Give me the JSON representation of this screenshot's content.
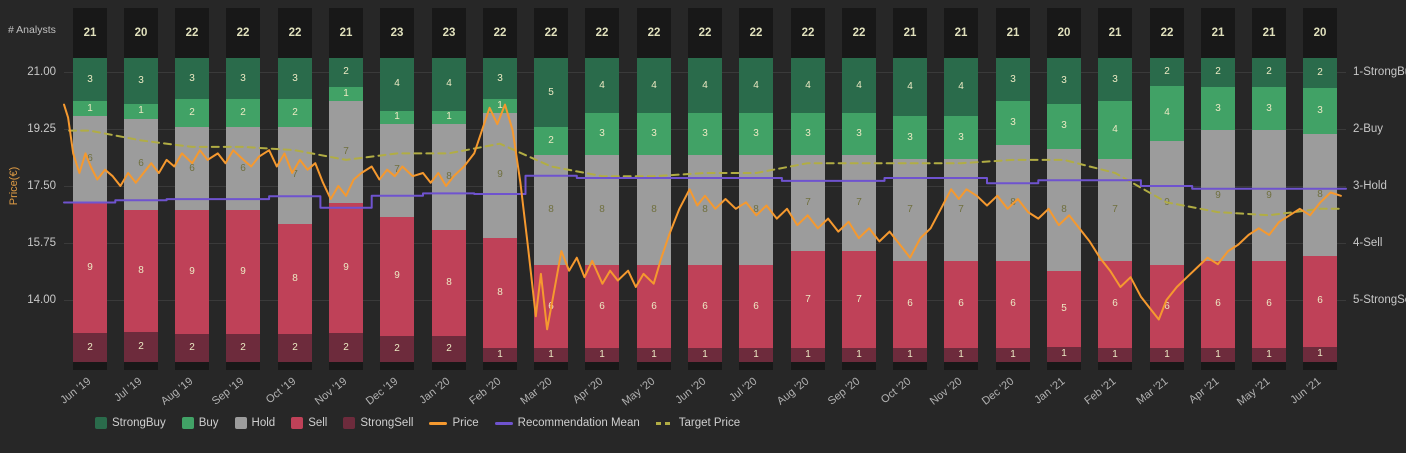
{
  "chart_data": {
    "type": "mixed-stacked-bar-and-line",
    "analysts_label": "# Analysts",
    "left_axis": {
      "label": "Price(€)",
      "ticks": [
        {
          "label": "21.00",
          "value": 21.0
        },
        {
          "label": "19.25",
          "value": 19.25
        },
        {
          "label": "17.50",
          "value": 17.5
        },
        {
          "label": "15.75",
          "value": 15.75
        },
        {
          "label": "14.00",
          "value": 14.0
        }
      ]
    },
    "right_axis": {
      "labels": [
        {
          "label": "1-StrongBuy",
          "value": 1
        },
        {
          "label": "2-Buy",
          "value": 2
        },
        {
          "label": "3-Hold",
          "value": 3
        },
        {
          "label": "4-Sell",
          "value": 4
        },
        {
          "label": "5-StrongSell",
          "value": 5
        }
      ]
    },
    "months": [
      "Jun '19",
      "Jul '19",
      "Aug '19",
      "Sep '19",
      "Oct '19",
      "Nov '19",
      "Dec '19",
      "Jan '20",
      "Feb '20",
      "Mar '20",
      "Apr '20",
      "May '20",
      "Jun '20",
      "Jul '20",
      "Aug '20",
      "Sep '20",
      "Oct '20",
      "Nov '20",
      "Dec '20",
      "Jan '21",
      "Feb '21",
      "Mar '21",
      "Apr '21",
      "May '21",
      "Jun '21"
    ],
    "analyst_counts": [
      21,
      20,
      22,
      22,
      22,
      21,
      23,
      23,
      22,
      22,
      22,
      22,
      22,
      22,
      22,
      22,
      21,
      21,
      21,
      20,
      21,
      22,
      21,
      21,
      20
    ],
    "series": [
      {
        "name": "StrongBuy",
        "color": "#2a6b4b",
        "values": [
          3,
          3,
          3,
          3,
          3,
          2,
          4,
          4,
          3,
          5,
          4,
          4,
          4,
          4,
          4,
          4,
          4,
          4,
          3,
          3,
          3,
          2,
          2,
          2,
          2
        ]
      },
      {
        "name": "Buy",
        "color": "#41a266",
        "values": [
          1,
          1,
          2,
          2,
          2,
          1,
          1,
          1,
          1,
          2,
          3,
          3,
          3,
          3,
          3,
          3,
          3,
          3,
          3,
          3,
          4,
          4,
          3,
          3,
          3
        ]
      },
      {
        "name": "Hold",
        "color": "#9c9c9c",
        "values": [
          6,
          6,
          6,
          6,
          7,
          7,
          7,
          8,
          9,
          8,
          8,
          8,
          8,
          8,
          7,
          7,
          7,
          7,
          8,
          8,
          7,
          9,
          9,
          9,
          8
        ]
      },
      {
        "name": "Sell",
        "color": "#bf4158",
        "values": [
          9,
          8,
          9,
          9,
          8,
          9,
          9,
          8,
          8,
          6,
          6,
          6,
          6,
          6,
          7,
          7,
          6,
          6,
          6,
          5,
          6,
          6,
          6,
          6,
          6
        ]
      },
      {
        "name": "StrongSell",
        "color": "#6d2b3c",
        "values": [
          2,
          2,
          2,
          2,
          2,
          2,
          2,
          2,
          1,
          1,
          1,
          1,
          1,
          1,
          1,
          1,
          1,
          1,
          1,
          1,
          1,
          1,
          1,
          1,
          1
        ]
      }
    ],
    "lines": {
      "price": {
        "name": "Price",
        "color": "#f5992f",
        "points": [
          [
            0,
            20.0
          ],
          [
            0.08,
            19.6
          ],
          [
            0.18,
            18.5
          ],
          [
            0.3,
            17.9
          ],
          [
            0.42,
            18.5
          ],
          [
            0.52,
            18.1
          ],
          [
            0.65,
            17.7
          ],
          [
            0.8,
            18.0
          ],
          [
            0.95,
            17.8
          ],
          [
            1.1,
            17.5
          ],
          [
            1.25,
            17.9
          ],
          [
            1.4,
            17.6
          ],
          [
            1.55,
            17.9
          ],
          [
            1.7,
            18.2
          ],
          [
            1.85,
            17.9
          ],
          [
            2.0,
            18.3
          ],
          [
            2.15,
            18.1
          ],
          [
            2.3,
            18.5
          ],
          [
            2.5,
            18.2
          ],
          [
            2.65,
            18.6
          ],
          [
            2.8,
            18.3
          ],
          [
            3.0,
            18.5
          ],
          [
            3.15,
            18.2
          ],
          [
            3.3,
            18.6
          ],
          [
            3.5,
            18.3
          ],
          [
            3.65,
            18.1
          ],
          [
            3.8,
            18.4
          ],
          [
            4.0,
            18.6
          ],
          [
            4.15,
            18.1
          ],
          [
            4.3,
            18.5
          ],
          [
            4.45,
            17.9
          ],
          [
            4.6,
            18.3
          ],
          [
            4.75,
            18.0
          ],
          [
            4.9,
            18.2
          ],
          [
            5.05,
            17.6
          ],
          [
            5.2,
            17.1
          ],
          [
            5.35,
            17.5
          ],
          [
            5.5,
            17.2
          ],
          [
            5.65,
            17.7
          ],
          [
            5.8,
            17.9
          ],
          [
            6.0,
            18.1
          ],
          [
            6.15,
            17.7
          ],
          [
            6.3,
            18.0
          ],
          [
            6.45,
            17.8
          ],
          [
            6.6,
            18.1
          ],
          [
            6.8,
            17.8
          ],
          [
            7.0,
            17.9
          ],
          [
            7.15,
            17.6
          ],
          [
            7.3,
            17.9
          ],
          [
            7.45,
            17.5
          ],
          [
            7.6,
            17.8
          ],
          [
            7.8,
            18.1
          ],
          [
            8.0,
            18.5
          ],
          [
            8.15,
            19.2
          ],
          [
            8.3,
            19.9
          ],
          [
            8.45,
            19.4
          ],
          [
            8.6,
            20.0
          ],
          [
            8.75,
            19.2
          ],
          [
            8.9,
            17.6
          ],
          [
            9.05,
            15.6
          ],
          [
            9.2,
            13.5
          ],
          [
            9.3,
            14.8
          ],
          [
            9.42,
            13.1
          ],
          [
            9.55,
            14.2
          ],
          [
            9.7,
            15.5
          ],
          [
            9.85,
            14.9
          ],
          [
            10.0,
            15.3
          ],
          [
            10.15,
            14.7
          ],
          [
            10.3,
            15.2
          ],
          [
            10.5,
            14.5
          ],
          [
            10.65,
            14.9
          ],
          [
            10.8,
            14.6
          ],
          [
            11.0,
            14.9
          ],
          [
            11.15,
            14.4
          ],
          [
            11.3,
            14.8
          ],
          [
            11.5,
            14.5
          ],
          [
            11.65,
            15.3
          ],
          [
            11.8,
            16.0
          ],
          [
            12.0,
            16.8
          ],
          [
            12.2,
            17.4
          ],
          [
            12.35,
            16.9
          ],
          [
            12.5,
            17.2
          ],
          [
            12.7,
            16.8
          ],
          [
            12.9,
            17.1
          ],
          [
            13.1,
            16.8
          ],
          [
            13.3,
            17.0
          ],
          [
            13.5,
            16.6
          ],
          [
            13.7,
            16.9
          ],
          [
            13.9,
            16.5
          ],
          [
            14.1,
            16.8
          ],
          [
            14.3,
            16.3
          ],
          [
            14.5,
            16.6
          ],
          [
            14.7,
            16.2
          ],
          [
            14.9,
            16.5
          ],
          [
            15.1,
            16.1
          ],
          [
            15.3,
            16.4
          ],
          [
            15.5,
            15.9
          ],
          [
            15.7,
            16.2
          ],
          [
            15.9,
            15.8
          ],
          [
            16.1,
            16.1
          ],
          [
            16.3,
            15.7
          ],
          [
            16.5,
            15.3
          ],
          [
            16.7,
            15.9
          ],
          [
            16.9,
            16.2
          ],
          [
            17.1,
            16.8
          ],
          [
            17.3,
            17.4
          ],
          [
            17.45,
            17.1
          ],
          [
            17.6,
            17.4
          ],
          [
            17.8,
            17.2
          ],
          [
            18.0,
            16.9
          ],
          [
            18.2,
            17.2
          ],
          [
            18.4,
            16.8
          ],
          [
            18.6,
            17.1
          ],
          [
            18.8,
            16.7
          ],
          [
            19.0,
            16.5
          ],
          [
            19.2,
            16.8
          ],
          [
            19.4,
            16.3
          ],
          [
            19.6,
            16.6
          ],
          [
            19.8,
            16.2
          ],
          [
            20.0,
            15.8
          ],
          [
            20.2,
            15.3
          ],
          [
            20.4,
            14.9
          ],
          [
            20.6,
            14.4
          ],
          [
            20.8,
            14.7
          ],
          [
            21.0,
            14.1
          ],
          [
            21.2,
            13.7
          ],
          [
            21.35,
            13.4
          ],
          [
            21.5,
            14.0
          ],
          [
            21.7,
            14.4
          ],
          [
            21.9,
            14.7
          ],
          [
            22.1,
            15.0
          ],
          [
            22.3,
            15.3
          ],
          [
            22.5,
            15.1
          ],
          [
            22.7,
            15.5
          ],
          [
            22.9,
            15.7
          ],
          [
            23.1,
            16.0
          ],
          [
            23.3,
            16.2
          ],
          [
            23.5,
            16.0
          ],
          [
            23.7,
            16.4
          ],
          [
            23.9,
            16.6
          ],
          [
            24.1,
            16.8
          ],
          [
            24.3,
            16.6
          ],
          [
            24.5,
            17.0
          ],
          [
            24.7,
            17.3
          ],
          [
            24.9,
            17.2
          ]
        ]
      },
      "recommendation_mean": {
        "name": "Recommendation Mean",
        "color": "#6f53cf",
        "values": [
          3.29,
          3.25,
          3.23,
          3.23,
          3.18,
          3.38,
          3.17,
          3.13,
          3.14,
          2.82,
          2.86,
          2.86,
          2.86,
          2.86,
          2.91,
          2.91,
          2.86,
          2.86,
          2.95,
          2.9,
          2.9,
          3.0,
          3.05,
          3.05,
          3.05
        ]
      },
      "target_price": {
        "name": "Target Price",
        "color": "#b1ad44",
        "dashed": true,
        "values": [
          19.2,
          18.9,
          18.7,
          18.7,
          18.6,
          18.3,
          18.5,
          18.5,
          18.8,
          18.1,
          17.8,
          17.8,
          17.9,
          17.9,
          18.2,
          18.2,
          18.2,
          18.2,
          18.3,
          18.3,
          17.9,
          17.0,
          16.7,
          16.6,
          16.8
        ]
      }
    },
    "legend": [
      "StrongBuy",
      "Buy",
      "Hold",
      "Sell",
      "StrongSell",
      "Price",
      "Recommendation Mean",
      "Target Price"
    ],
    "colors": {
      "background": "#272727",
      "band": "#181818",
      "gridline": "#3a3a3a",
      "segment_label_light": "#ece9c3",
      "segment_label_dark": "#70703f",
      "count_label": "#e0e0bc"
    }
  }
}
